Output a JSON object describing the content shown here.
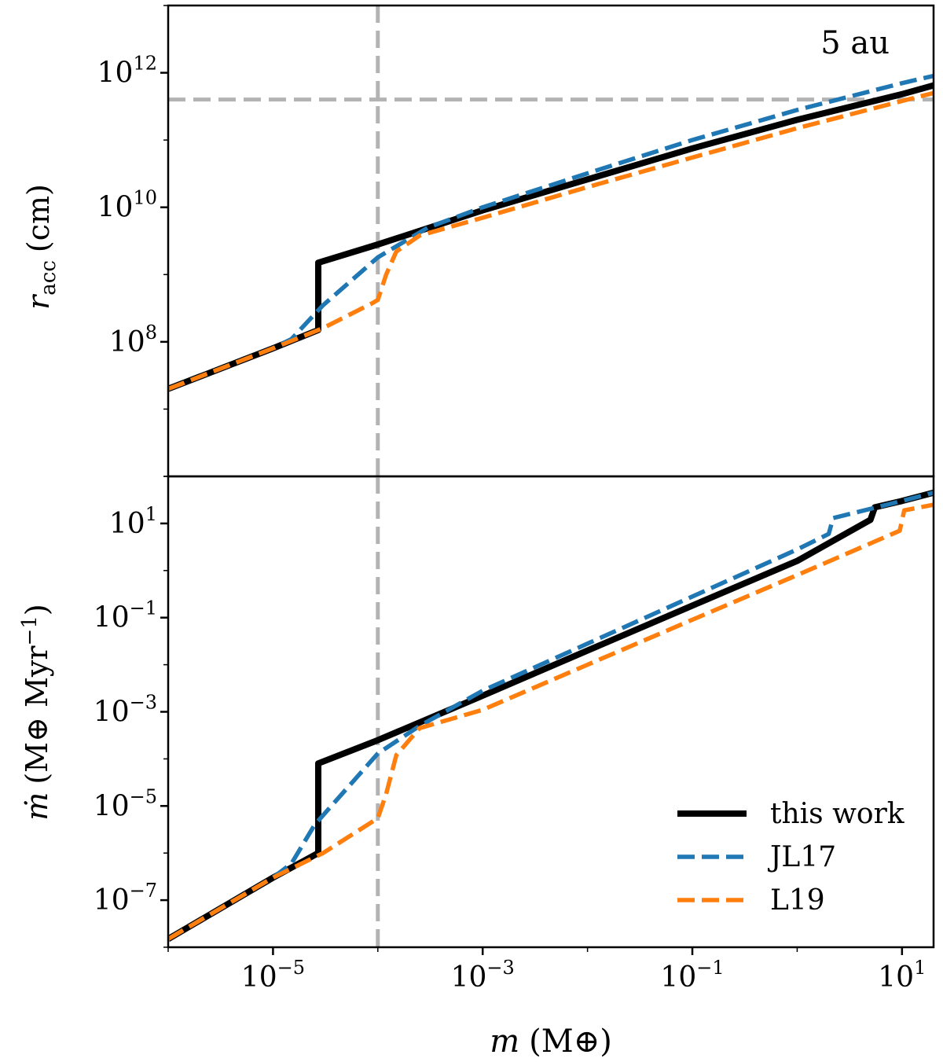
{
  "chart_data": [
    {
      "type": "line",
      "panel": "top",
      "xscale": "log",
      "yscale": "log",
      "xlim": [
        1e-06,
        20
      ],
      "ylim": [
        1000000.0,
        10000000000000.0
      ],
      "ylabel_main": "r",
      "ylabel_sub": "acc",
      "ylabel_unit": "(cm)",
      "annotation": "5 au",
      "y_ticks": [
        {
          "base": "10",
          "exp": "8",
          "value": 100000000.0
        },
        {
          "base": "10",
          "exp": "10",
          "value": 10000000000.0
        },
        {
          "base": "10",
          "exp": "12",
          "value": 1000000000000.0
        }
      ],
      "reference_lines": {
        "vertical_x": 0.0001,
        "horizontal_y": 400000000000.0
      },
      "series": [
        {
          "name": "this work",
          "color": "#000000",
          "dash": "solid",
          "x": [
            1e-06,
            1e-05,
            2.7e-05,
            2.7e-05,
            0.0001,
            0.001,
            0.01,
            0.1,
            1,
            10,
            20
          ],
          "y": [
            20000000.0,
            80000000.0,
            150000000.0,
            1500000000.0,
            2800000000.0,
            9000000000.0,
            26000000000.0,
            75000000000.0,
            200000000000.0,
            480000000000.0,
            650000000000.0
          ]
        },
        {
          "name": "JL17",
          "color": "#1f77b4",
          "dash": "dashed",
          "x": [
            1e-06,
            1e-05,
            1.5e-05,
            3e-05,
            0.0001,
            0.0003,
            0.001,
            0.01,
            0.1,
            1,
            10,
            20
          ],
          "y": [
            20000000.0,
            80000000.0,
            110000000.0,
            350000000.0,
            1800000000.0,
            5000000000.0,
            10000000000.0,
            32000000000.0,
            100000000000.0,
            280000000000.0,
            700000000000.0,
            900000000000.0
          ]
        },
        {
          "name": "L19",
          "color": "#ff7f0e",
          "dash": "dashed",
          "x": [
            1e-06,
            1e-05,
            3e-05,
            9e-05,
            0.0001,
            0.00012,
            0.00015,
            0.00025,
            0.001,
            0.01,
            0.1,
            1,
            10,
            20
          ],
          "y": [
            20000000.0,
            80000000.0,
            160000000.0,
            380000000.0,
            420000000.0,
            1000000000.0,
            2200000000.0,
            3800000000.0,
            7000000000.0,
            20000000000.0,
            55000000000.0,
            150000000000.0,
            380000000000.0,
            500000000000.0
          ]
        }
      ]
    },
    {
      "type": "line",
      "panel": "bottom",
      "xscale": "log",
      "yscale": "log",
      "xlim": [
        1e-06,
        20
      ],
      "ylim": [
        1e-08,
        100.0
      ],
      "xlabel_main": "m",
      "xlabel_unit": "(M⊕)",
      "ylabel_main": "ṁ",
      "ylabel_unit": "(M⊕ Myr",
      "ylabel_exp": "−1",
      "ylabel_close": ")",
      "x_ticks": [
        {
          "base": "10",
          "exp": "−5",
          "value": 1e-05
        },
        {
          "base": "10",
          "exp": "−3",
          "value": 0.001
        },
        {
          "base": "10",
          "exp": "−1",
          "value": 0.1
        },
        {
          "base": "10",
          "exp": "1",
          "value": 10
        }
      ],
      "y_ticks": [
        {
          "base": "10",
          "exp": "−7",
          "value": 1e-07
        },
        {
          "base": "10",
          "exp": "−5",
          "value": 1e-05
        },
        {
          "base": "10",
          "exp": "−3",
          "value": 0.001
        },
        {
          "base": "10",
          "exp": "−1",
          "value": 0.1
        },
        {
          "base": "10",
          "exp": "1",
          "value": 10
        }
      ],
      "reference_lines": {
        "vertical_x": 0.0001
      },
      "legend_position": "lower-right",
      "series": [
        {
          "name": "this work",
          "color": "#000000",
          "dash": "solid",
          "x": [
            1e-06,
            1e-05,
            2.7e-05,
            2.7e-05,
            0.0001,
            0.001,
            0.01,
            0.1,
            1,
            5,
            5.5,
            10,
            20
          ],
          "y": [
            1.5e-08,
            3e-07,
            1e-06,
            8e-05,
            0.00025,
            0.0022,
            0.02,
            0.18,
            1.6,
            12,
            22,
            30,
            45
          ]
        },
        {
          "name": "JL17",
          "color": "#1f77b4",
          "dash": "dashed",
          "x": [
            1e-06,
            1e-05,
            1.5e-05,
            2.5e-05,
            0.0001,
            0.00025,
            0.001,
            0.01,
            0.1,
            1,
            2,
            2.2,
            10,
            20
          ],
          "y": [
            1.5e-08,
            3e-07,
            6e-07,
            4e-06,
            0.00013,
            0.0005,
            0.0028,
            0.028,
            0.28,
            2.8,
            6,
            13,
            30,
            45
          ]
        },
        {
          "name": "L19",
          "color": "#ff7f0e",
          "dash": "dashed",
          "x": [
            1e-06,
            1e-05,
            3e-05,
            0.0001,
            0.00012,
            0.00015,
            0.00025,
            0.001,
            0.01,
            0.1,
            1,
            9.5,
            10.5,
            20
          ],
          "y": [
            1.5e-08,
            3e-07,
            1e-06,
            5.5e-06,
            1.8e-05,
            0.00012,
            0.00045,
            0.0011,
            0.01,
            0.09,
            0.8,
            7,
            19,
            25
          ]
        }
      ]
    }
  ],
  "legend": [
    {
      "label": "this work",
      "color": "#000000",
      "dash": "solid"
    },
    {
      "label": "JL17",
      "color": "#1f77b4",
      "dash": "dashed"
    },
    {
      "label": "L19",
      "color": "#ff7f0e",
      "dash": "dashed"
    }
  ],
  "colors": {
    "reference_line": "#b3b3b3",
    "axes": "#000000"
  }
}
